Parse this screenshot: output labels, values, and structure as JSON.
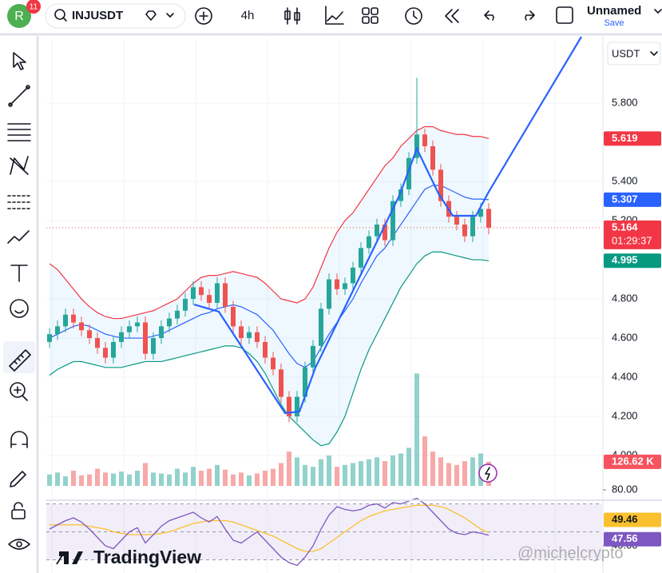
{
  "header": {
    "avatar": "R",
    "badge": 11,
    "symbol": "INJUSDT",
    "interval": "4h",
    "layout_name": "Unnamed",
    "save": "Save",
    "currency": "USDT"
  },
  "watermark": "TradingView",
  "credit": "@michelcrypto",
  "chart_data": {
    "type": "candlestick",
    "ylim": [
      3.845,
      6.131
    ],
    "yticks": [
      {
        "value": 5.8,
        "label": "5.800"
      },
      {
        "value": 5.4,
        "label": "5.400"
      },
      {
        "value": 5.2,
        "label": "5.200"
      },
      {
        "value": 4.8,
        "label": "4.800"
      },
      {
        "value": 4.6,
        "label": "4.600"
      },
      {
        "value": 4.4,
        "label": "4.400"
      },
      {
        "value": 4.2,
        "label": "4.200"
      },
      {
        "value": 4.0,
        "label": "4.000"
      }
    ],
    "up_color": "#26a69a",
    "down_color": "#ef5350",
    "open": [
      4.58,
      4.62,
      4.66,
      4.72,
      4.68,
      4.64,
      4.6,
      4.55,
      4.5,
      4.58,
      4.63,
      4.66,
      4.68,
      4.52,
      4.6,
      4.66,
      4.7,
      4.74,
      4.8,
      4.86,
      4.82,
      4.78,
      4.88,
      4.76,
      4.66,
      4.6,
      4.63,
      4.58,
      4.5,
      4.44,
      4.3,
      4.2,
      4.3,
      4.45,
      4.56,
      4.75,
      4.9,
      4.85,
      4.88,
      4.96,
      5.06,
      5.12,
      5.18,
      5.1,
      5.3,
      5.36,
      5.52,
      5.64,
      5.58,
      5.46,
      5.3,
      5.22,
      5.18,
      5.12,
      5.22,
      5.26
    ],
    "high": [
      4.65,
      4.69,
      4.75,
      4.75,
      4.71,
      4.67,
      4.63,
      4.58,
      4.61,
      4.66,
      4.69,
      4.71,
      4.71,
      4.63,
      4.69,
      4.73,
      4.77,
      4.83,
      4.89,
      4.89,
      4.85,
      4.91,
      4.91,
      4.79,
      4.69,
      4.66,
      4.66,
      4.61,
      4.53,
      4.47,
      4.33,
      4.33,
      4.48,
      4.59,
      4.78,
      4.93,
      4.93,
      4.91,
      4.99,
      5.09,
      5.15,
      5.21,
      5.21,
      5.33,
      5.39,
      5.55,
      5.93,
      5.67,
      5.61,
      5.49,
      5.33,
      5.25,
      5.21,
      5.25,
      5.29,
      5.29
    ],
    "low": [
      4.55,
      4.59,
      4.63,
      4.65,
      4.61,
      4.57,
      4.52,
      4.47,
      4.47,
      4.55,
      4.6,
      4.63,
      4.49,
      4.49,
      4.57,
      4.63,
      4.67,
      4.71,
      4.77,
      4.79,
      4.75,
      4.75,
      4.73,
      4.63,
      4.57,
      4.57,
      4.55,
      4.47,
      4.41,
      4.27,
      4.17,
      4.17,
      4.27,
      4.42,
      4.53,
      4.72,
      4.82,
      4.82,
      4.85,
      4.93,
      5.03,
      5.09,
      5.07,
      5.07,
      5.27,
      5.33,
      5.49,
      5.55,
      5.43,
      5.27,
      5.19,
      5.15,
      5.09,
      5.09,
      5.19,
      5.13
    ],
    "close": [
      4.62,
      4.66,
      4.72,
      4.68,
      4.64,
      4.6,
      4.55,
      4.5,
      4.58,
      4.63,
      4.66,
      4.68,
      4.52,
      4.6,
      4.66,
      4.7,
      4.74,
      4.8,
      4.86,
      4.82,
      4.78,
      4.88,
      4.76,
      4.66,
      4.6,
      4.63,
      4.58,
      4.5,
      4.44,
      4.3,
      4.2,
      4.3,
      4.45,
      4.56,
      4.75,
      4.9,
      4.85,
      4.88,
      4.96,
      5.06,
      5.12,
      5.18,
      5.1,
      5.3,
      5.36,
      5.52,
      5.64,
      5.58,
      5.46,
      5.3,
      5.22,
      5.18,
      5.12,
      5.22,
      5.26,
      5.164
    ],
    "last_price_label": "5.164",
    "countdown": "01:29:37",
    "bands": [
      {
        "color": "#f23645",
        "values": [
          4.98,
          4.95,
          4.9,
          4.85,
          4.8,
          4.76,
          4.73,
          4.71,
          4.7,
          4.7,
          4.71,
          4.72,
          4.73,
          4.74,
          4.76,
          4.78,
          4.8,
          4.84,
          4.88,
          4.91,
          4.92,
          4.92,
          4.93,
          4.94,
          4.93,
          4.92,
          4.91,
          4.88,
          4.84,
          4.8,
          4.79,
          4.78,
          4.8,
          4.86,
          4.96,
          5.06,
          5.14,
          5.2,
          5.24,
          5.3,
          5.36,
          5.42,
          5.48,
          5.52,
          5.58,
          5.62,
          5.66,
          5.68,
          5.68,
          5.66,
          5.65,
          5.64,
          5.64,
          5.63,
          5.63,
          5.619
        ],
        "value_label": "5.619"
      },
      {
        "color": "#2962ff",
        "values": [
          4.6,
          4.62,
          4.64,
          4.66,
          4.67,
          4.66,
          4.64,
          4.62,
          4.61,
          4.6,
          4.6,
          4.6,
          4.6,
          4.61,
          4.62,
          4.64,
          4.66,
          4.68,
          4.7,
          4.72,
          4.73,
          4.75,
          4.76,
          4.77,
          4.76,
          4.74,
          4.72,
          4.68,
          4.64,
          4.58,
          4.52,
          4.47,
          4.45,
          4.48,
          4.55,
          4.62,
          4.68,
          4.74,
          4.8,
          4.88,
          4.95,
          5.02,
          5.06,
          5.12,
          5.18,
          5.24,
          5.3,
          5.36,
          5.38,
          5.38,
          5.36,
          5.34,
          5.32,
          5.31,
          5.31,
          5.307
        ],
        "value_label": "5.307"
      },
      {
        "color": "#089981",
        "values": [
          4.41,
          4.44,
          4.46,
          4.48,
          4.48,
          4.47,
          4.46,
          4.45,
          4.45,
          4.45,
          4.46,
          4.47,
          4.48,
          4.48,
          4.48,
          4.49,
          4.5,
          4.51,
          4.52,
          4.53,
          4.54,
          4.55,
          4.56,
          4.56,
          4.55,
          4.52,
          4.48,
          4.42,
          4.34,
          4.26,
          4.2,
          4.16,
          4.12,
          4.08,
          4.05,
          4.06,
          4.12,
          4.2,
          4.32,
          4.44,
          4.54,
          4.62,
          4.7,
          4.78,
          4.86,
          4.92,
          4.98,
          5.02,
          5.04,
          5.04,
          5.03,
          5.02,
          5.01,
          5.0,
          5.0,
          4.995
        ],
        "value_label": "4.995"
      }
    ],
    "volume": {
      "ylim": [
        0,
        600
      ],
      "values": [
        60,
        70,
        50,
        80,
        55,
        60,
        90,
        70,
        65,
        75,
        60,
        80,
        120,
        70,
        65,
        60,
        90,
        70,
        100,
        80,
        90,
        110,
        85,
        60,
        70,
        55,
        65,
        80,
        90,
        120,
        180,
        150,
        110,
        100,
        140,
        160,
        100,
        110,
        120,
        130,
        140,
        150,
        130,
        160,
        170,
        200,
        590,
        260,
        180,
        150,
        120,
        110,
        130,
        150,
        170,
        126.62
      ],
      "value_label": "126.62 K"
    },
    "rsi": {
      "ylim": [
        20,
        80
      ],
      "yticks": [
        {
          "value": 80,
          "label": "80.00"
        },
        {
          "value": 40,
          "label": "40.00"
        }
      ],
      "levels": [
        70,
        50,
        30
      ],
      "series": [
        {
          "color": "#fbc02d",
          "values": [
            55,
            55,
            55,
            55,
            55,
            54,
            53,
            52,
            50,
            49,
            48,
            48,
            48,
            48,
            49,
            50,
            52,
            54,
            56,
            57,
            58,
            58,
            58,
            57,
            55,
            53,
            51,
            49,
            47,
            44,
            41,
            38,
            36,
            36,
            38,
            42,
            46,
            50,
            54,
            58,
            61,
            63,
            65,
            66,
            67,
            68,
            69,
            69,
            69,
            68,
            66,
            63,
            60,
            56,
            52,
            49.46
          ],
          "value_label": "49.46"
        },
        {
          "color": "#7e57c2",
          "values": [
            52,
            55,
            58,
            60,
            57,
            52,
            46,
            40,
            38,
            44,
            50,
            53,
            42,
            48,
            54,
            58,
            60,
            62,
            64,
            60,
            57,
            61,
            52,
            44,
            42,
            46,
            50,
            44,
            38,
            32,
            28,
            26,
            32,
            40,
            52,
            62,
            68,
            66,
            65,
            66,
            69,
            70,
            67,
            71,
            70,
            72,
            74,
            70,
            64,
            58,
            52,
            49,
            48,
            50,
            49,
            47.56
          ],
          "value_label": "47.56"
        }
      ]
    }
  }
}
